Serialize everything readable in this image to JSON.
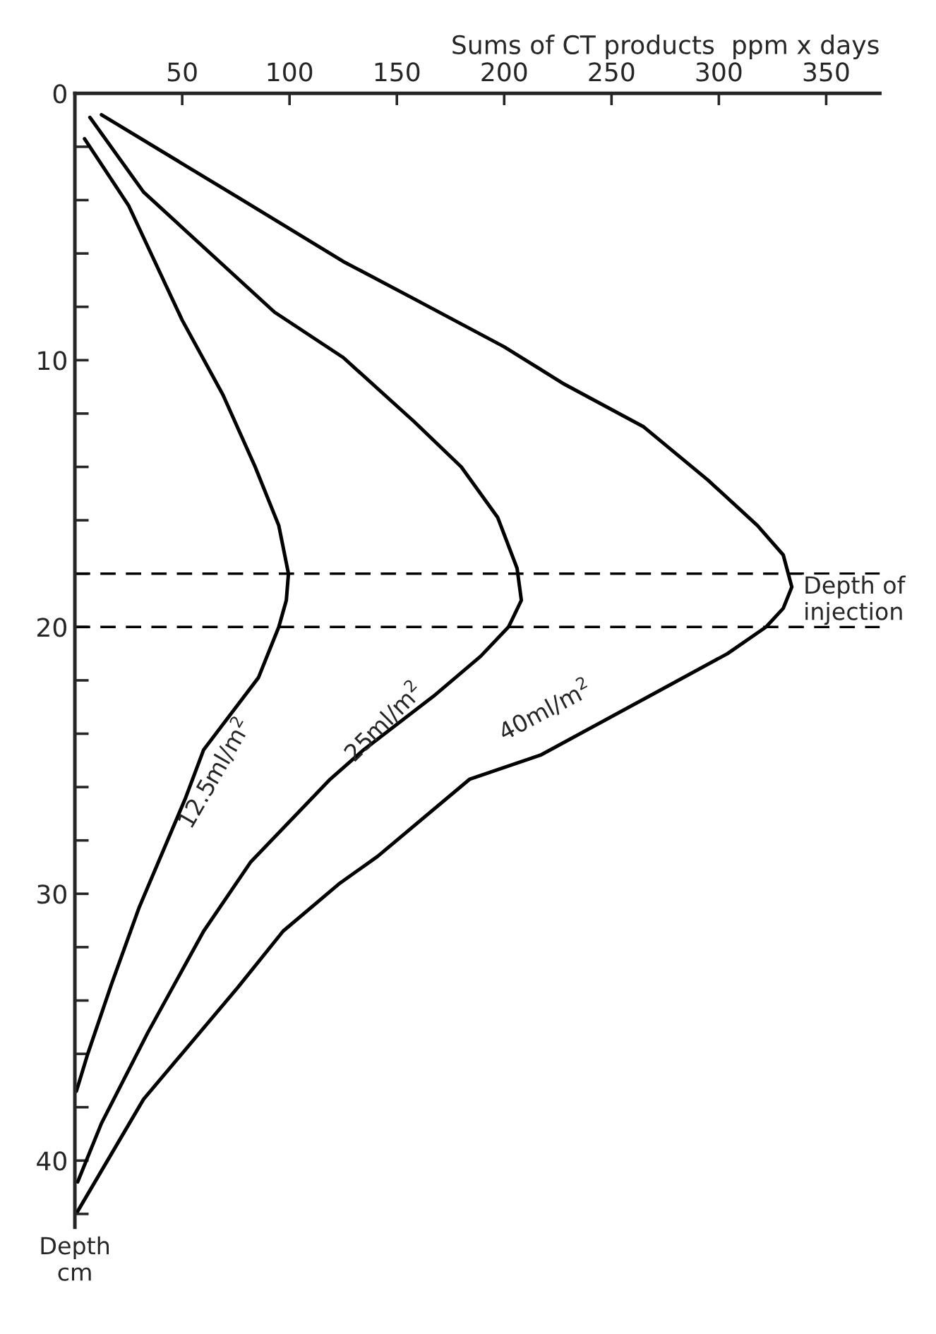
{
  "chart_data": {
    "type": "line",
    "xlabel": "Sums of CT products  ppm x days",
    "ylabel": "Depth\ncm",
    "xlim": [
      0,
      375
    ],
    "xticks": [
      50,
      100,
      150,
      200,
      250,
      300,
      350
    ],
    "ylim": [
      42.5,
      0
    ],
    "yticks": [
      0,
      {
        "value": 2,
        "label": null
      },
      {
        "value": 4,
        "label": null
      },
      {
        "value": 6,
        "label": null
      },
      {
        "value": 8,
        "label": null
      },
      10,
      {
        "value": 12,
        "label": null
      },
      {
        "value": 14,
        "label": null
      },
      {
        "value": 16,
        "label": null
      },
      {
        "value": 18,
        "label": null
      },
      20,
      {
        "value": 22,
        "label": null
      },
      {
        "value": 24,
        "label": null
      },
      {
        "value": 26,
        "label": null
      },
      {
        "value": 28,
        "label": null
      },
      30,
      {
        "value": 32,
        "label": null
      },
      {
        "value": 34,
        "label": null
      },
      {
        "value": 36,
        "label": null
      },
      {
        "value": 38,
        "label": null
      },
      40,
      {
        "value": 42,
        "label": null
      }
    ],
    "grid": false,
    "legend": false,
    "marker": "none",
    "line_style": "solid",
    "series": [
      {
        "color": "#000000",
        "x": [
          4.5,
          25,
          50,
          69,
          84,
          95,
          99.5,
          98.5,
          95,
          85.5,
          60,
          51.6,
          30,
          17,
          6,
          0.7
        ],
        "values": [
          1.7,
          4.2,
          8.5,
          11.3,
          14,
          16.2,
          18,
          19,
          20,
          21.9,
          24.6,
          26.4,
          30.5,
          33.4,
          36,
          37.4
        ]
      },
      {
        "color": "#000000",
        "x": [
          7,
          32,
          93,
          125,
          158,
          180,
          197,
          206,
          208,
          202,
          189,
          167,
          134.6,
          119,
          82,
          60,
          34,
          12.4,
          1.3
        ],
        "values": [
          0.9,
          3.7,
          8.2,
          9.9,
          12.3,
          14,
          15.9,
          17.8,
          19,
          20,
          21.1,
          22.6,
          24.6,
          25.7,
          28.8,
          31.4,
          35.2,
          38.6,
          40.8
        ]
      },
      {
        "color": "#000000",
        "x": [
          12.4,
          76,
          125,
          158,
          200,
          228,
          265,
          295,
          318,
          330,
          334,
          330,
          322,
          304,
          272,
          217,
          184,
          141,
          123.5,
          97,
          76,
          32,
          1.3
        ],
        "values": [
          0.8,
          3.9,
          6.3,
          7.7,
          9.5,
          10.9,
          12.5,
          14.5,
          16.2,
          17.3,
          18.5,
          19.3,
          20,
          21,
          22.4,
          24.8,
          25.7,
          28.6,
          29.6,
          31.4,
          33.5,
          37.7,
          41.9
        ]
      }
    ],
    "ref_lines": [
      {
        "axis": "y",
        "value": 18,
        "line_style": "dashed",
        "color": "#000000"
      },
      {
        "axis": "y",
        "value": 20,
        "line_style": "dashed",
        "color": "#000000"
      }
    ],
    "annotations": [
      "Depth of\ninjection",
      "12.5ml/m$^{2}$",
      "25ml/m$^{2}$",
      "40ml/m$^{2}$"
    ]
  }
}
